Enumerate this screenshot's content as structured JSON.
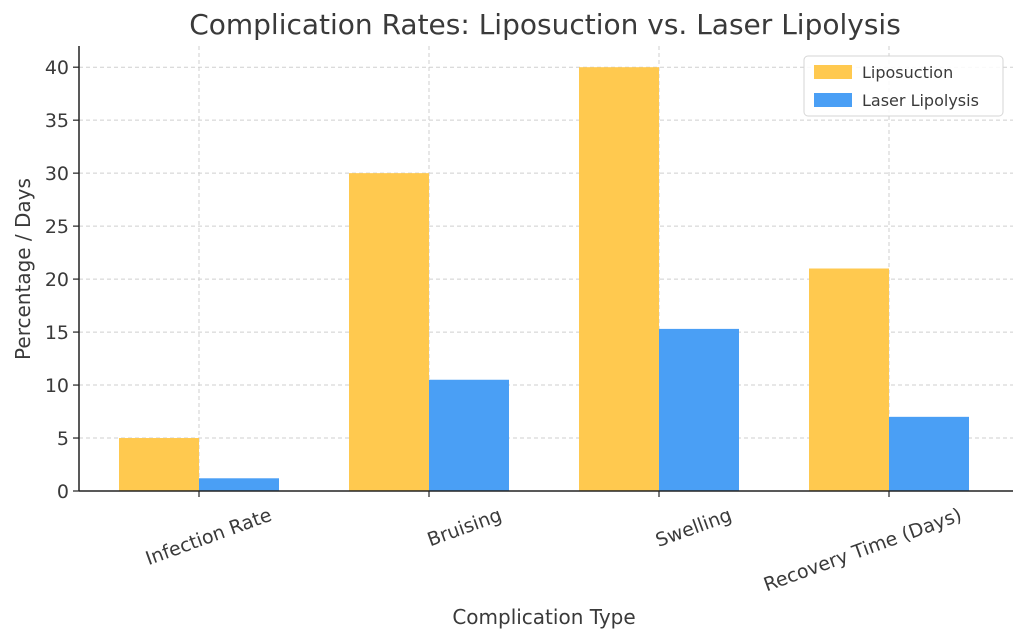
{
  "chart_data": {
    "type": "bar",
    "title": "Complication Rates: Liposuction vs. Laser Lipolysis",
    "xlabel": "Complication Type",
    "ylabel": "Percentage / Days",
    "categories": [
      "Infection Rate",
      "Bruising",
      "Swelling",
      "Recovery Time (Days)"
    ],
    "series": [
      {
        "name": "Liposuction",
        "color": "#FFC94F",
        "values": [
          5,
          30,
          40,
          21
        ]
      },
      {
        "name": "Laser Lipolysis",
        "color": "#4A9FF5",
        "values": [
          1.2,
          10.5,
          15.3,
          7
        ]
      }
    ],
    "ylim": [
      0,
      42
    ],
    "yticks": [
      0,
      5,
      10,
      15,
      20,
      25,
      30,
      35,
      40
    ],
    "grid": true,
    "legend_position": "top-right"
  }
}
